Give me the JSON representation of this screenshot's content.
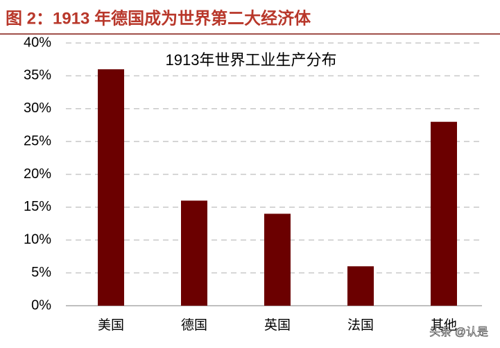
{
  "header": {
    "title": "图 2：1913 年德国成为世界第二大经济体"
  },
  "chart_data": {
    "type": "bar",
    "title": "1913年世界工业生产分布",
    "categories": [
      "美国",
      "德国",
      "英国",
      "法国",
      "其他"
    ],
    "values": [
      36,
      16,
      14,
      6,
      28
    ],
    "color": "#6b0000",
    "ylim": [
      0,
      40
    ],
    "yticks": [
      {
        "value": 0,
        "label": "0%"
      },
      {
        "value": 5,
        "label": "5%"
      },
      {
        "value": 10,
        "label": "10%"
      },
      {
        "value": 15,
        "label": "15%"
      },
      {
        "value": 20,
        "label": "20%"
      },
      {
        "value": 25,
        "label": "25%"
      },
      {
        "value": 30,
        "label": "30%"
      },
      {
        "value": 35,
        "label": "35%"
      },
      {
        "value": 40,
        "label": "40%"
      }
    ],
    "grid": true
  },
  "watermark": "头条 @认是"
}
